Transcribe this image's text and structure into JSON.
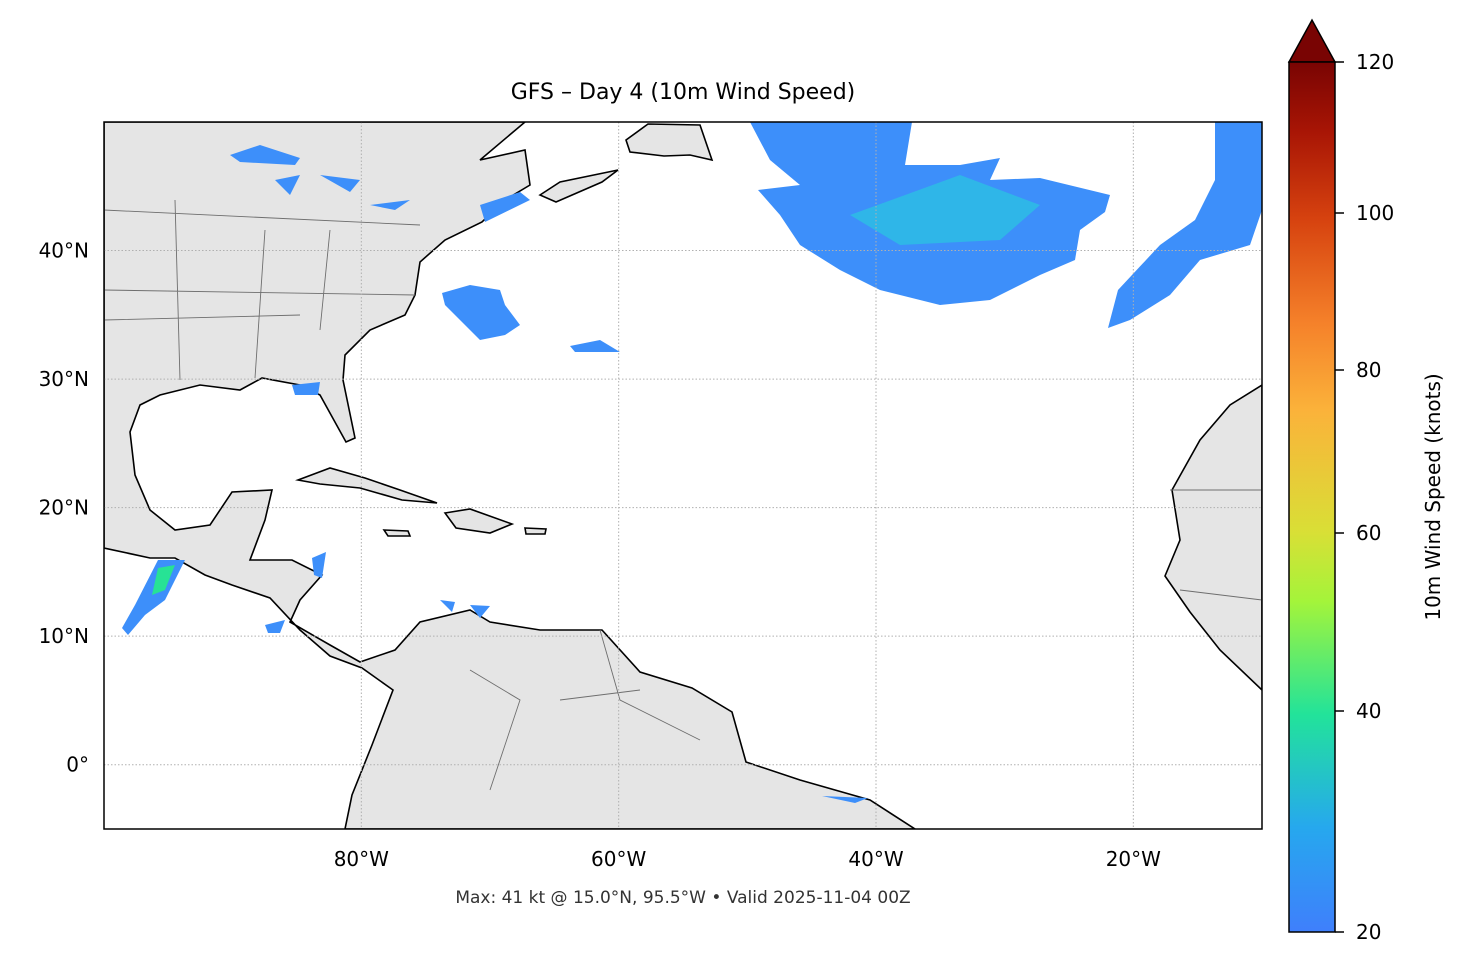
{
  "title": "GFS – Day 4 (10m Wind Speed)",
  "footer": "Max: 41 kt @ 15.0°N, 95.5°W • Valid 2025-11-04 00Z",
  "map": {
    "extent": {
      "lon": [
        -100,
        -10
      ],
      "lat": [
        -5,
        50
      ]
    },
    "lon_ticks": [
      {
        "value": -80,
        "label": "80°W"
      },
      {
        "value": -60,
        "label": "60°W"
      },
      {
        "value": -40,
        "label": "40°W"
      },
      {
        "value": -20,
        "label": "20°W"
      }
    ],
    "lat_ticks": [
      {
        "value": 40,
        "label": "40°N"
      },
      {
        "value": 30,
        "label": "30°N"
      },
      {
        "value": 20,
        "label": "20°N"
      },
      {
        "value": 10,
        "label": "10°N"
      },
      {
        "value": 0,
        "label": "0°"
      }
    ],
    "gridlines": true,
    "land_color": "#e5e5e5",
    "ocean_color": "#ffffff"
  },
  "colorbar": {
    "label": "10m Wind Speed (knots)",
    "ticks": [
      {
        "value": 120,
        "label": "120"
      },
      {
        "value": 100,
        "label": "100"
      },
      {
        "value": 80,
        "label": "80"
      },
      {
        "value": 60,
        "label": "60"
      },
      {
        "value": 40,
        "label": "40"
      },
      {
        "value": 20,
        "label": "20"
      }
    ],
    "extend": "max",
    "colors": [
      "#3f7ffc",
      "#1ecbd8",
      "#26e98c",
      "#a4f43a",
      "#d9df36",
      "#fbb23a",
      "#f5812a",
      "#e0521a",
      "#c42e08",
      "#971003",
      "#790403"
    ]
  }
}
